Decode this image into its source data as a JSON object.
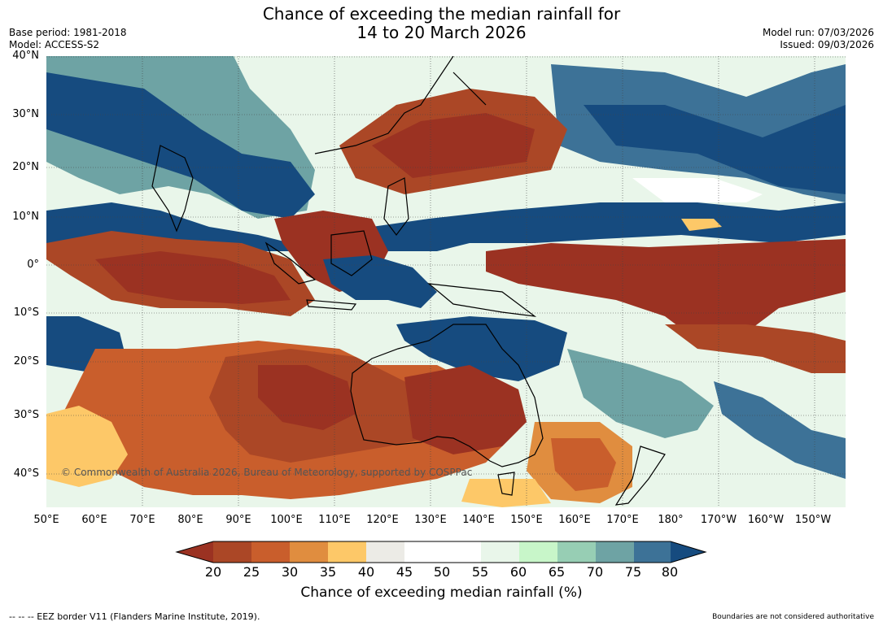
{
  "header": {
    "title_line1": "Chance of exceeding the median rainfall for",
    "title_line2": "14 to 20 March 2026",
    "base_period": "Base period: 1981-2018",
    "model": "Model: ACCESS-S2",
    "model_run": "Model run: 07/03/2026",
    "issued": "Issued: 09/03/2026"
  },
  "map": {
    "lat_labels": [
      "40°N",
      "30°N",
      "20°N",
      "10°N",
      "0°",
      "10°S",
      "20°S",
      "30°S",
      "40°S"
    ],
    "lon_labels": [
      "50°E",
      "60°E",
      "70°E",
      "80°E",
      "90°E",
      "100°E",
      "110°E",
      "120°E",
      "130°E",
      "140°E",
      "150°E",
      "160°E",
      "170°E",
      "180°",
      "170°W",
      "160°W",
      "150°W"
    ],
    "watermark": "© Commonwealth of Australia 2026, Bureau of Meteorology, supported by COSPPac"
  },
  "colorbar": {
    "labels": [
      "20",
      "25",
      "30",
      "35",
      "40",
      "45",
      "50",
      "55",
      "60",
      "65",
      "70",
      "75",
      "80"
    ],
    "colors": [
      "#9b3222",
      "#ab4726",
      "#c95e2c",
      "#e08d3f",
      "#fdc868",
      "#ecebe6",
      "#ffffff",
      "#ffffff",
      "#e9f6ea",
      "#c8f6c9",
      "#97ceb4",
      "#6ea3a4",
      "#3d7297",
      "#164b7f"
    ],
    "title": "Chance of exceeding median rainfall (%)"
  },
  "footer": {
    "eez_note": "--  --  -- EEZ border V11 (Flanders Marine Institute, 2019).",
    "disclaimer": "Boundaries are not considered authoritative"
  }
}
